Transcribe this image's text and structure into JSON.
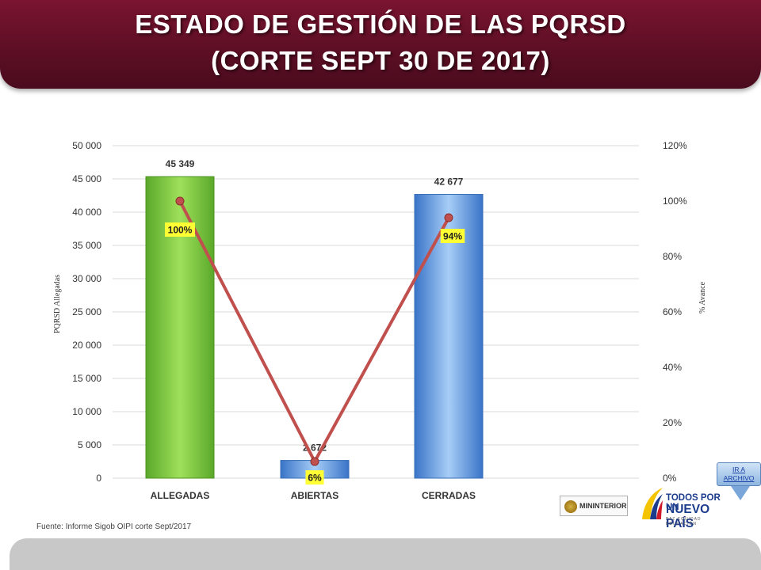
{
  "header": {
    "title_line1": "ESTADO DE GESTIÓN DE LAS PQRSD",
    "title_line2": "(CORTE SEPT 30 DE 2017)"
  },
  "chart_data": {
    "type": "bar",
    "categories": [
      "ALLEGADAS",
      "ABIERTAS",
      "CERRADAS"
    ],
    "series": [
      {
        "values": [
          45349,
          2672,
          42677
        ],
        "value_labels": [
          "45 349",
          "2 672",
          "42 677"
        ],
        "colors": [
          "#7fc83c",
          "#6aa0e6",
          "#6aa0e6"
        ],
        "axis": "left"
      },
      {
        "type": "line",
        "values": [
          100,
          6,
          94
        ],
        "value_labels": [
          "100%",
          "6%",
          "94%"
        ],
        "color": "#c0504d",
        "axis": "right"
      }
    ],
    "ylabel": "PQRSD Allegadas",
    "y2label": "% Avance",
    "ylim": [
      0,
      50000
    ],
    "y2lim": [
      0,
      120
    ],
    "yticks": [
      "0",
      "5 000",
      "10 000",
      "15 000",
      "20 000",
      "25 000",
      "30 000",
      "35 000",
      "40 000",
      "45 000",
      "50 000"
    ],
    "y2ticks": [
      "0%",
      "20%",
      "40%",
      "60%",
      "80%",
      "100%",
      "120%"
    ],
    "grid": true
  },
  "source": "Fuente: Informe Sigob OIPI corte Sept/2017",
  "button": {
    "label_line1": "IR A",
    "label_line2": "ARCHIVO"
  },
  "logos": {
    "ministerio": "MININTERIOR",
    "pais_line1": "TODOS POR UN",
    "pais_line2": "NUEVO PAÍS",
    "pais_tagline": "PAZ  EQUIDAD  EDUCACIÓN"
  }
}
